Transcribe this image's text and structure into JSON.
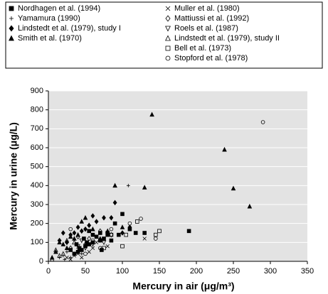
{
  "chart_data": {
    "type": "scatter",
    "x_label": "Mercury in air (μg/m³)",
    "y_label": "Mercury in urine (μg/L)",
    "xlim": [
      0,
      350
    ],
    "xticks": [
      0,
      50,
      100,
      150,
      200,
      250,
      300,
      350
    ],
    "ylim": [
      0,
      900
    ],
    "yticks": [
      0,
      100,
      200,
      300,
      400,
      500,
      600,
      700,
      800,
      900
    ],
    "grid": true,
    "background": "#e3e3e3",
    "series": [
      {
        "name": "Nordhagen et al. (1994)",
        "color": "#000000",
        "marker": "square",
        "filled": true,
        "x": [
          190,
          130,
          118,
          110,
          100,
          90,
          80,
          80,
          75,
          70,
          65,
          60,
          55,
          50,
          48,
          45,
          42,
          40,
          38,
          35,
          30,
          55,
          60,
          70,
          85,
          95,
          72,
          52
        ],
        "values": [
          160,
          150,
          150,
          170,
          250,
          200,
          140,
          150,
          120,
          110,
          130,
          100,
          90,
          80,
          120,
          60,
          70,
          50,
          90,
          40,
          60,
          160,
          140,
          150,
          110,
          140,
          60,
          100
        ]
      },
      {
        "name": "Yamamura (1990)",
        "color": "#000000",
        "marker": "plus",
        "filled": true,
        "x": [
          108,
          20,
          25,
          30,
          35,
          15,
          40,
          45,
          22
        ],
        "values": [
          400,
          30,
          50,
          20,
          35,
          20,
          70,
          40,
          10
        ]
      },
      {
        "name": "Lindstedt et al. (1979), study I",
        "color": "#000000",
        "marker": "diamond",
        "filled": true,
        "x": [
          90,
          75,
          65,
          55,
          45,
          40,
          35,
          30,
          20,
          15,
          25,
          85,
          60,
          50,
          110,
          100
        ],
        "values": [
          310,
          230,
          210,
          190,
          160,
          180,
          150,
          140,
          150,
          110,
          100,
          230,
          240,
          170,
          180,
          150
        ]
      },
      {
        "name": "Smith et al. (1970)",
        "color": "#000000",
        "marker": "triangle",
        "filled": true,
        "x": [
          140,
          238,
          250,
          130,
          272,
          90,
          50,
          45,
          40,
          30,
          20,
          10,
          15,
          25,
          5,
          35,
          60,
          80,
          100,
          70
        ],
        "values": [
          775,
          590,
          385,
          390,
          290,
          400,
          230,
          210,
          140,
          130,
          90,
          50,
          100,
          70,
          20,
          120,
          170,
          160,
          180,
          120
        ]
      },
      {
        "name": "Muller et al. (1980)",
        "color": "#000000",
        "marker": "cross",
        "filled": false,
        "x": [
          130,
          80,
          60,
          55,
          45,
          35,
          25,
          30,
          65,
          40
        ],
        "values": [
          120,
          80,
          70,
          50,
          20,
          30,
          20,
          10,
          100,
          40
        ]
      },
      {
        "name": "Mattiussi et al. (1992)",
        "color": "#000000",
        "marker": "diamond",
        "filled": false,
        "x": [
          70,
          55,
          30,
          50,
          40,
          85
        ],
        "values": [
          160,
          120,
          70,
          90,
          130,
          140
        ]
      },
      {
        "name": "Roels et al. (1987)",
        "color": "#000000",
        "marker": "down-triangle",
        "filled": false,
        "x": [
          60,
          50,
          40,
          45,
          75
        ],
        "values": [
          90,
          70,
          80,
          110,
          100
        ]
      },
      {
        "name": "Lindstedt et al. (1979), study II",
        "color": "#000000",
        "marker": "triangle",
        "filled": false,
        "x": [
          15,
          20,
          10,
          25,
          35,
          5
        ],
        "values": [
          30,
          40,
          60,
          110,
          100,
          10
        ]
      },
      {
        "name": "Bell et al. (1973)",
        "color": "#000000",
        "marker": "square",
        "filled": false,
        "x": [
          150,
          145,
          105,
          85,
          75,
          100,
          120
        ],
        "values": [
          160,
          140,
          140,
          140,
          70,
          80,
          210
        ]
      },
      {
        "name": "Stopford et al. (1978)",
        "color": "#000000",
        "marker": "circle",
        "filled": false,
        "x": [
          290,
          125,
          145,
          85,
          70,
          30,
          60,
          110,
          50
        ],
        "values": [
          735,
          225,
          120,
          170,
          70,
          170,
          110,
          200,
          40
        ]
      }
    ]
  }
}
